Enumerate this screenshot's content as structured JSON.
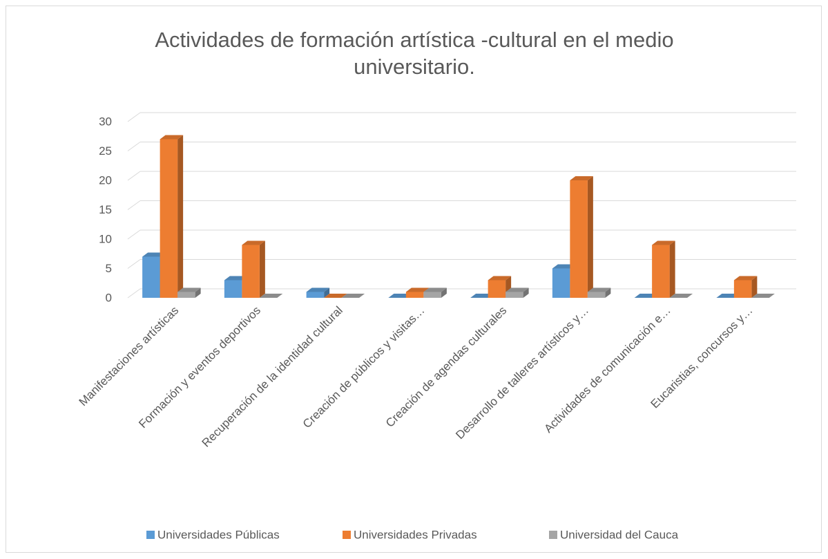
{
  "chart_data": {
    "type": "bar3d",
    "title": "Actividades de formación artística -cultural en el medio universitario.",
    "categories": [
      "Manifestaciones artísticas",
      "Formación y eventos deportivos",
      "Recuperación de la identidad cultural",
      "Creación de públicos y visitas…",
      "Creación de agendas culturales",
      "Desarrollo de talleres artísticos y…",
      "Actividades de comunicación e…",
      "Eucaristias, concursos y…"
    ],
    "series": [
      {
        "name": "Universidades Públicas",
        "color": "#5b9bd5",
        "values": [
          7,
          3,
          1,
          0,
          0,
          5,
          0,
          0
        ]
      },
      {
        "name": "Universidades Privadas",
        "color": "#ed7d31",
        "values": [
          27,
          9,
          0,
          1,
          3,
          20,
          9,
          3
        ]
      },
      {
        "name": "Universidad del Cauca",
        "color": "#a5a5a5",
        "values": [
          1,
          0,
          0,
          1,
          1,
          1,
          0,
          0
        ]
      }
    ],
    "ylim": [
      0,
      30
    ],
    "yticks": [
      0,
      5,
      10,
      15,
      20,
      25,
      30
    ],
    "grid": true,
    "legend": "bottom"
  }
}
